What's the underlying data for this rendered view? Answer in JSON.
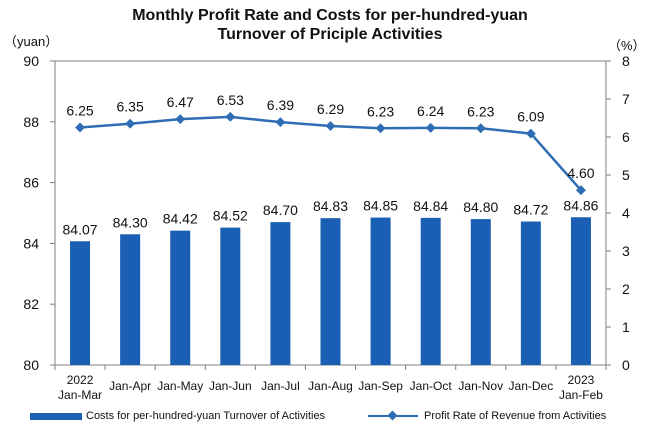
{
  "title_line1": "Monthly Profit Rate and Costs for per-hundred-yuan",
  "title_line2": "Turnover of Priciple Activities",
  "colors": {
    "bar": "#1a5fb4",
    "line": "#2e6db4",
    "axis": "#7f7f7f"
  },
  "chart_data": {
    "type": "bar",
    "title": "Monthly Profit Rate and Costs for per-hundred-yuan Turnover of Priciple Activities",
    "categories": [
      [
        "2022",
        "Jan-Mar"
      ],
      [
        "Jan-Apr"
      ],
      [
        "Jan-May"
      ],
      [
        "Jan-Jun"
      ],
      [
        "Jan-Jul"
      ],
      [
        "Jan-Aug"
      ],
      [
        "Jan-Sep"
      ],
      [
        "Jan-Oct"
      ],
      [
        "Jan-Nov"
      ],
      [
        "Jan-Dec"
      ],
      [
        "2023",
        "Jan-Feb"
      ]
    ],
    "left_unit": "（yuan）",
    "right_unit": "（%）",
    "left_ylim": [
      80,
      90
    ],
    "left_ticks": [
      80,
      82,
      84,
      86,
      88,
      90
    ],
    "right_ylim": [
      0,
      8
    ],
    "right_ticks": [
      0,
      1,
      2,
      3,
      4,
      5,
      6,
      7,
      8
    ],
    "series": [
      {
        "name": "Costs for per-hundred-yuan Turnover of Activities",
        "type": "bar",
        "axis": "left",
        "values": [
          84.07,
          84.3,
          84.42,
          84.52,
          84.7,
          84.83,
          84.85,
          84.84,
          84.8,
          84.72,
          84.86
        ],
        "labels": [
          "84.07",
          "84.30",
          "84.42",
          "84.52",
          "84.70",
          "84.83",
          "84.85",
          "84.84",
          "84.80",
          "84.72",
          "84.86"
        ]
      },
      {
        "name": "Profit Rate of Revenue from Activities",
        "type": "line",
        "axis": "right",
        "values": [
          6.25,
          6.35,
          6.47,
          6.53,
          6.39,
          6.29,
          6.23,
          6.24,
          6.23,
          6.09,
          4.6
        ],
        "labels": [
          "6.25",
          "6.35",
          "6.47",
          "6.53",
          "6.39",
          "6.29",
          "6.23",
          "6.24",
          "6.23",
          "6.09",
          "4.60"
        ]
      }
    ],
    "grid": false,
    "legend": "bottom"
  }
}
